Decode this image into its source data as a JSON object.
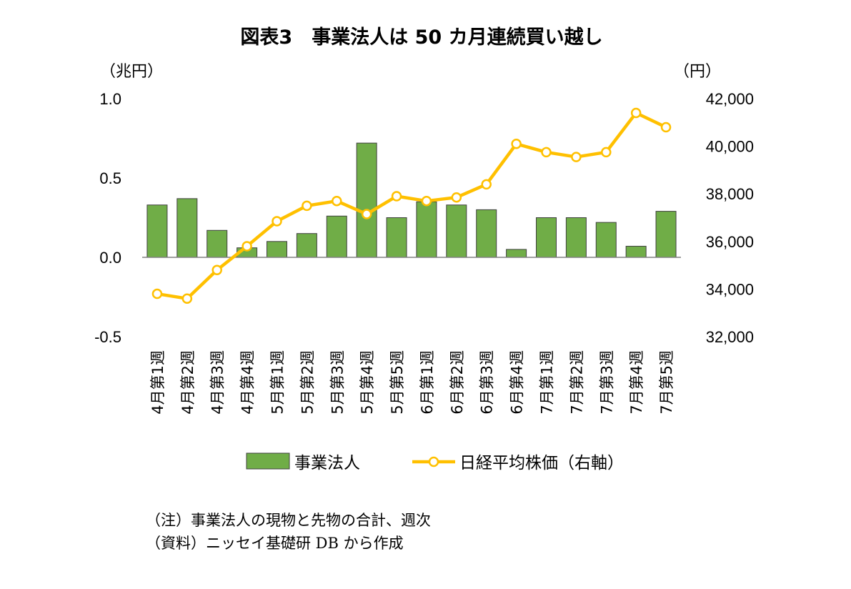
{
  "chart_data": {
    "type": "bar",
    "title": "図表3　事業法人は 50 カ月連続買い越し",
    "left_unit": "（兆円）",
    "right_unit": "（円）",
    "categories": [
      "4月第1週",
      "4月第2週",
      "4月第3週",
      "4月第4週",
      "5月第1週",
      "5月第2週",
      "5月第3週",
      "5月第4週",
      "5月第5週",
      "6月第1週",
      "6月第2週",
      "6月第3週",
      "6月第4週",
      "7月第1週",
      "7月第2週",
      "7月第3週",
      "7月第4週",
      "7月第5週"
    ],
    "left_axis": {
      "min": -0.5,
      "max": 1.0,
      "ticks": [
        1.0,
        0.5,
        0.0,
        -0.5
      ],
      "tick_labels": [
        "1.0",
        "0.5",
        "0.0",
        "-0.5"
      ]
    },
    "right_axis": {
      "min": 32000,
      "max": 42000,
      "ticks": [
        42000,
        40000,
        38000,
        36000,
        34000,
        32000
      ],
      "tick_labels": [
        "42,000",
        "40,000",
        "38,000",
        "36,000",
        "34,000",
        "32,000"
      ]
    },
    "series": [
      {
        "name": "事業法人",
        "type": "bar",
        "axis": "left",
        "color": "#70AD47",
        "values": [
          0.33,
          0.37,
          0.17,
          0.06,
          0.1,
          0.15,
          0.26,
          0.72,
          0.25,
          0.35,
          0.33,
          0.3,
          0.05,
          0.25,
          0.25,
          0.22,
          0.07,
          0.29
        ]
      },
      {
        "name": "日経平均株価（右軸）",
        "type": "line",
        "axis": "right",
        "color": "#FFC000",
        "values": [
          33800,
          33600,
          34800,
          35800,
          36850,
          37500,
          37700,
          37150,
          37900,
          37700,
          37850,
          38400,
          40100,
          39750,
          39550,
          39750,
          41400,
          40800
        ]
      }
    ],
    "grid": false,
    "legend_position": "bottom"
  },
  "notes": [
    "（注）事業法人の現物と先物の合計、週次",
    "（資料）ニッセイ基礎研 DB から作成"
  ]
}
